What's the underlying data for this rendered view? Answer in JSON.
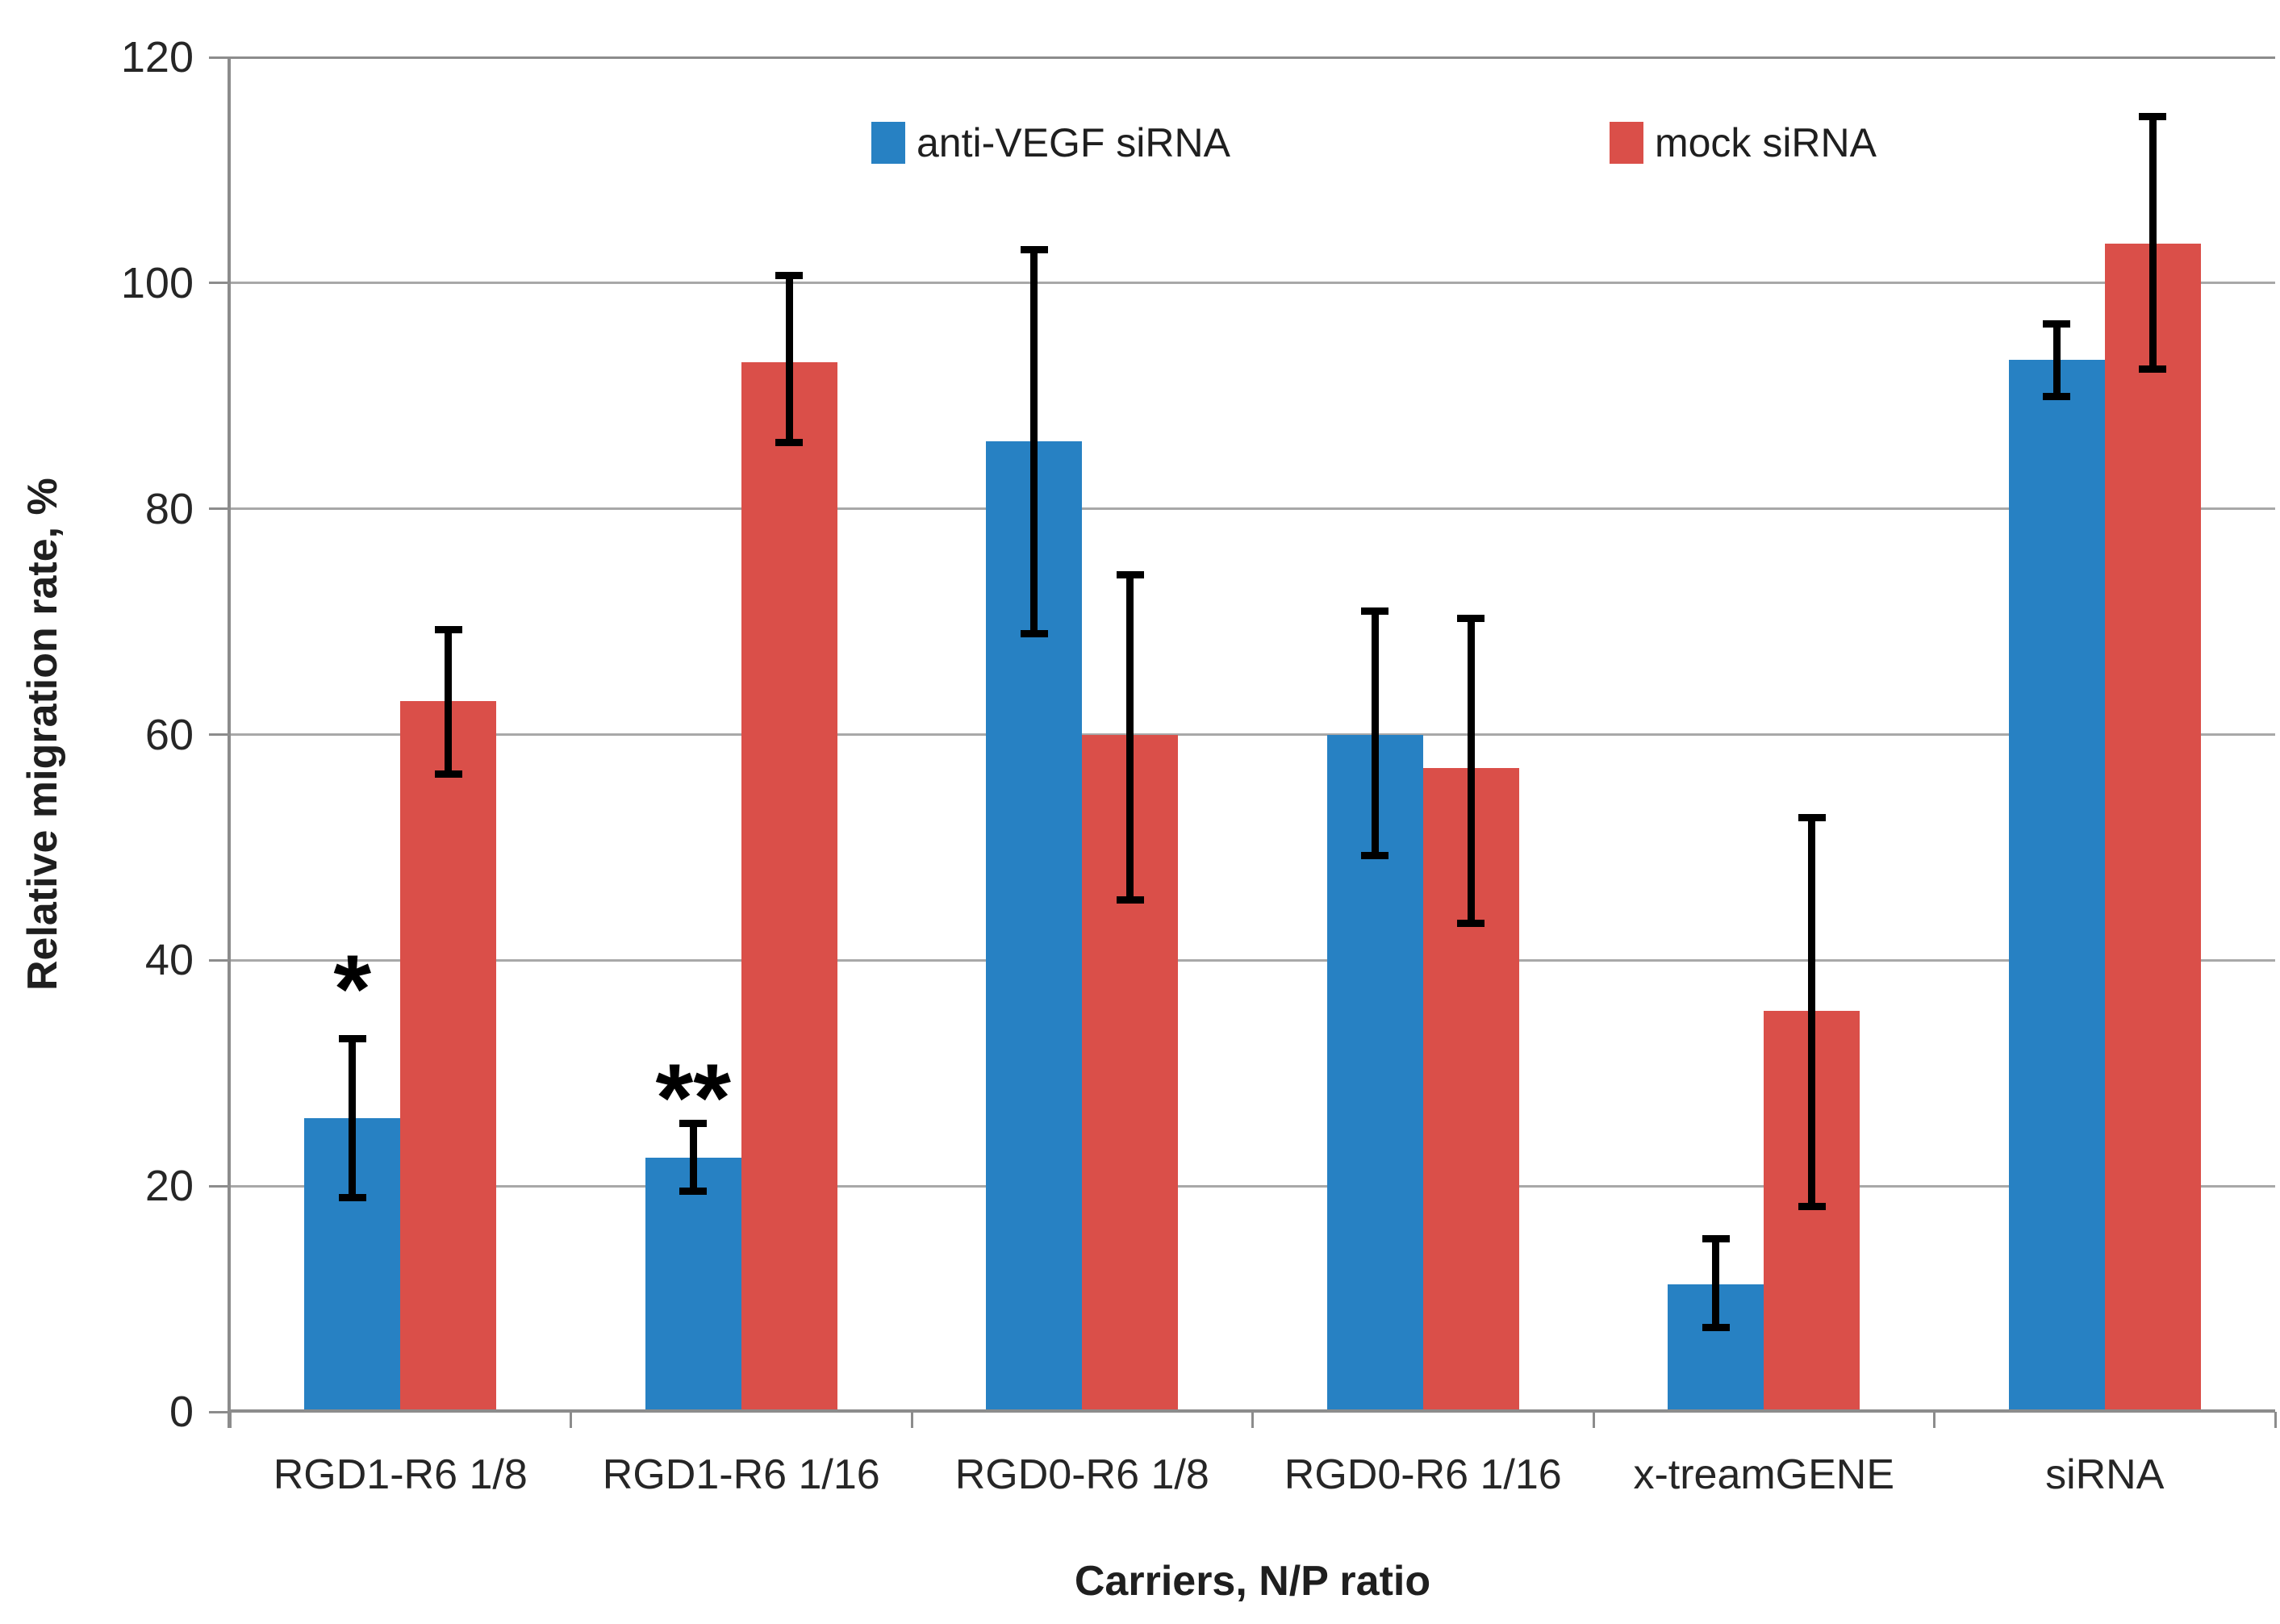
{
  "chart_data": {
    "type": "bar",
    "title": "",
    "xlabel": "Carriers, N/P ratio",
    "ylabel": "Relative migration rate, %",
    "ylim": [
      0,
      120
    ],
    "yticks": [
      0,
      20,
      40,
      60,
      80,
      100,
      120
    ],
    "grid": true,
    "legend_position": "top-center",
    "categories": [
      "RGD1-R6 1/8",
      "RGD1-R6 1/16",
      "RGD0-R6 1/8",
      "RGD0-R6 1/16",
      "x-treamGENE",
      "siRNA"
    ],
    "series": [
      {
        "name": "anti-VEGF siRNA",
        "color": "#2781C3",
        "points": [
          {
            "v": 26,
            "lo": 19,
            "hi": 33.1
          },
          {
            "v": 22.5,
            "lo": 19.6,
            "hi": 25.6
          },
          {
            "v": 86,
            "lo": 69,
            "hi": 103
          },
          {
            "v": 60,
            "lo": 49.3,
            "hi": 71
          },
          {
            "v": 11.3,
            "lo": 7.5,
            "hi": 15.4
          },
          {
            "v": 93.2,
            "lo": 90,
            "hi": 96.4
          }
        ]
      },
      {
        "name": "mock siRNA",
        "color": "#DA4F49",
        "points": [
          {
            "v": 63,
            "lo": 56.5,
            "hi": 69.3
          },
          {
            "v": 93,
            "lo": 85.9,
            "hi": 100.7
          },
          {
            "v": 60,
            "lo": 45.4,
            "hi": 74.2
          },
          {
            "v": 57,
            "lo": 43.3,
            "hi": 70.3
          },
          {
            "v": 35.5,
            "lo": 18.2,
            "hi": 52.7
          },
          {
            "v": 103.5,
            "lo": 92.4,
            "hi": 114.8
          }
        ]
      }
    ],
    "annotations": [
      {
        "text": "*",
        "category_index": 0,
        "series_index": 0,
        "value": 38.7
      },
      {
        "text": "**",
        "category_index": 1,
        "series_index": 0,
        "value": 29
      }
    ]
  },
  "styles": {
    "grid_color": "#A8A8A8",
    "axis_color": "#8C8C8C",
    "text_color": "#262626",
    "error_color": "#000000",
    "background": "#FFFFFF"
  }
}
